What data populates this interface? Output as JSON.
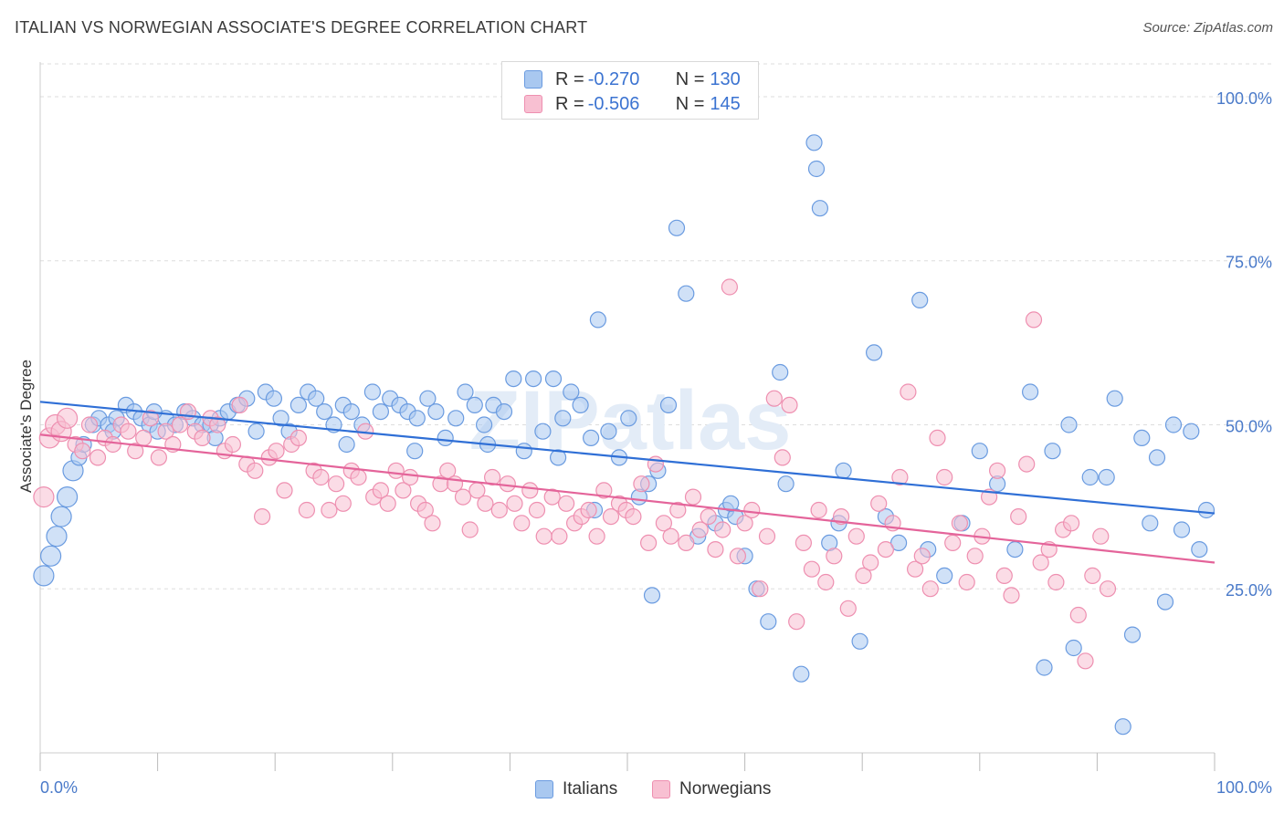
{
  "title": "ITALIAN VS NORWEGIAN ASSOCIATE'S DEGREE CORRELATION CHART",
  "source": "Source: ZipAtlas.com",
  "watermark": "ZIPatlas",
  "legend": {
    "rows": [
      {
        "r_label": "R =",
        "r_value": "-0.270",
        "n_label": "N =",
        "n_value": "130"
      },
      {
        "r_label": "R =",
        "r_value": "-0.506",
        "n_label": "N =",
        "n_value": "145"
      }
    ]
  },
  "bottom_legend": {
    "italians": "Italians",
    "norwegians": "Norwegians"
  },
  "colors": {
    "italians_fill": "#a9c8f0",
    "italians_stroke": "#6a9be0",
    "italians_line": "#2f6fd6",
    "norwegians_fill": "#f8c0d2",
    "norwegians_stroke": "#ee8fb0",
    "norwegians_line": "#e4649a",
    "axis_label": "#4a7ac9",
    "grid": "#dddddd"
  },
  "chart_data": {
    "type": "scatter",
    "title": "ITALIAN VS NORWEGIAN ASSOCIATE'S DEGREE CORRELATION CHART",
    "xlabel": "",
    "ylabel": "Associate's Degree",
    "xlim": [
      0,
      100
    ],
    "ylim": [
      0,
      105
    ],
    "x_tick_labels": [
      "0.0%",
      "100.0%"
    ],
    "y_ticks": [
      25,
      50,
      75,
      100
    ],
    "y_tick_labels": [
      "25.0%",
      "50.0%",
      "75.0%",
      "100.0%"
    ],
    "series": [
      {
        "name": "Italians",
        "r": -0.27,
        "n": 130,
        "trend": {
          "x0": 0,
          "y0": 53.5,
          "x1": 100,
          "y1": 36.5
        },
        "points": [
          [
            0.3,
            27
          ],
          [
            0.9,
            30
          ],
          [
            1.4,
            33
          ],
          [
            1.8,
            36
          ],
          [
            2.3,
            39
          ],
          [
            2.8,
            43
          ],
          [
            3.3,
            45
          ],
          [
            3.7,
            47
          ],
          [
            4.5,
            50
          ],
          [
            5,
            51
          ],
          [
            5.8,
            50
          ],
          [
            6.5,
            51
          ],
          [
            7.3,
            53
          ],
          [
            8,
            52
          ],
          [
            8.6,
            51
          ],
          [
            9.3,
            50
          ],
          [
            10,
            49
          ],
          [
            10.7,
            51
          ],
          [
            11.5,
            50
          ],
          [
            12.3,
            52
          ],
          [
            13,
            51
          ],
          [
            13.8,
            50
          ],
          [
            14.5,
            50
          ],
          [
            15.3,
            51
          ],
          [
            16,
            52
          ],
          [
            16.8,
            53
          ],
          [
            17.6,
            54
          ],
          [
            18.4,
            49
          ],
          [
            19.2,
            55
          ],
          [
            19.9,
            54
          ],
          [
            20.5,
            51
          ],
          [
            21.2,
            49
          ],
          [
            22,
            53
          ],
          [
            22.8,
            55
          ],
          [
            23.5,
            54
          ],
          [
            24.2,
            52
          ],
          [
            25,
            50
          ],
          [
            25.8,
            53
          ],
          [
            26.5,
            52
          ],
          [
            27.4,
            50
          ],
          [
            28.3,
            55
          ],
          [
            29,
            52
          ],
          [
            29.8,
            54
          ],
          [
            30.6,
            53
          ],
          [
            31.3,
            52
          ],
          [
            32.1,
            51
          ],
          [
            33,
            54
          ],
          [
            33.7,
            52
          ],
          [
            34.5,
            48
          ],
          [
            35.4,
            51
          ],
          [
            36.2,
            55
          ],
          [
            37,
            53
          ],
          [
            37.8,
            50
          ],
          [
            38.6,
            53
          ],
          [
            39.5,
            52
          ],
          [
            40.3,
            57
          ],
          [
            41.2,
            46
          ],
          [
            42,
            57
          ],
          [
            42.8,
            49
          ],
          [
            43.7,
            57
          ],
          [
            44.5,
            51
          ],
          [
            45.2,
            55
          ],
          [
            46,
            53
          ],
          [
            46.9,
            48
          ],
          [
            47.5,
            66
          ],
          [
            48.4,
            49
          ],
          [
            49.3,
            45
          ],
          [
            50.1,
            51
          ],
          [
            51,
            39
          ],
          [
            51.8,
            41
          ],
          [
            52.6,
            43
          ],
          [
            53.5,
            53
          ],
          [
            54.2,
            80
          ],
          [
            55,
            70
          ],
          [
            56,
            33
          ],
          [
            57.5,
            35
          ],
          [
            58.4,
            37
          ],
          [
            59.2,
            36
          ],
          [
            60,
            30
          ],
          [
            61,
            25
          ],
          [
            62,
            20
          ],
          [
            63,
            58
          ],
          [
            63.5,
            41
          ],
          [
            64.8,
            12
          ],
          [
            65.9,
            93
          ],
          [
            66.1,
            89
          ],
          [
            66.4,
            83
          ],
          [
            67.2,
            32
          ],
          [
            68,
            35
          ],
          [
            68.4,
            43
          ],
          [
            69.8,
            17
          ],
          [
            71,
            61
          ],
          [
            72,
            36
          ],
          [
            73.1,
            32
          ],
          [
            74.9,
            69
          ],
          [
            75.6,
            31
          ],
          [
            77,
            27
          ],
          [
            78.5,
            35
          ],
          [
            80,
            46
          ],
          [
            81.5,
            41
          ],
          [
            83,
            31
          ],
          [
            84.3,
            55
          ],
          [
            85.5,
            13
          ],
          [
            86.2,
            46
          ],
          [
            87.6,
            50
          ],
          [
            88,
            16
          ],
          [
            89.4,
            42
          ],
          [
            90.8,
            42
          ],
          [
            91.5,
            54
          ],
          [
            92.2,
            4
          ],
          [
            93,
            18
          ],
          [
            93.8,
            48
          ],
          [
            94.5,
            35
          ],
          [
            95.1,
            45
          ],
          [
            95.8,
            23
          ],
          [
            96.5,
            50
          ],
          [
            97.2,
            34
          ],
          [
            98,
            49
          ],
          [
            98.7,
            31
          ],
          [
            99.3,
            37
          ],
          [
            6.2,
            49
          ],
          [
            9.7,
            52
          ],
          [
            14.9,
            48
          ],
          [
            26.1,
            47
          ],
          [
            31.9,
            46
          ],
          [
            38.1,
            47
          ],
          [
            44.1,
            45
          ],
          [
            47.2,
            37
          ],
          [
            52.1,
            24
          ],
          [
            58.8,
            38
          ]
        ]
      },
      {
        "name": "Norwegians",
        "r": -0.506,
        "n": 145,
        "trend": {
          "x0": 0,
          "y0": 48.5,
          "x1": 100,
          "y1": 29.0
        },
        "points": [
          [
            0.3,
            39
          ],
          [
            0.8,
            48
          ],
          [
            1.3,
            50
          ],
          [
            1.8,
            49
          ],
          [
            2.3,
            51
          ],
          [
            3,
            47
          ],
          [
            3.6,
            46
          ],
          [
            4.2,
            50
          ],
          [
            4.9,
            45
          ],
          [
            5.5,
            48
          ],
          [
            6.2,
            47
          ],
          [
            6.9,
            50
          ],
          [
            7.5,
            49
          ],
          [
            8.1,
            46
          ],
          [
            8.8,
            48
          ],
          [
            9.4,
            51
          ],
          [
            10.1,
            45
          ],
          [
            10.7,
            49
          ],
          [
            11.3,
            47
          ],
          [
            11.9,
            50
          ],
          [
            12.6,
            52
          ],
          [
            13.2,
            49
          ],
          [
            13.8,
            48
          ],
          [
            14.5,
            51
          ],
          [
            15.1,
            50
          ],
          [
            15.7,
            46
          ],
          [
            16.4,
            47
          ],
          [
            17,
            53
          ],
          [
            17.6,
            44
          ],
          [
            18.3,
            43
          ],
          [
            18.9,
            36
          ],
          [
            19.5,
            45
          ],
          [
            20.1,
            46
          ],
          [
            20.8,
            40
          ],
          [
            21.4,
            47
          ],
          [
            22,
            48
          ],
          [
            22.7,
            37
          ],
          [
            23.3,
            43
          ],
          [
            23.9,
            42
          ],
          [
            24.6,
            37
          ],
          [
            25.2,
            41
          ],
          [
            25.8,
            38
          ],
          [
            26.5,
            43
          ],
          [
            27.1,
            42
          ],
          [
            27.7,
            49
          ],
          [
            28.4,
            39
          ],
          [
            29,
            40
          ],
          [
            29.6,
            38
          ],
          [
            30.3,
            43
          ],
          [
            30.9,
            40
          ],
          [
            31.5,
            42
          ],
          [
            32.2,
            38
          ],
          [
            32.8,
            37
          ],
          [
            33.4,
            35
          ],
          [
            34.1,
            41
          ],
          [
            34.7,
            43
          ],
          [
            35.3,
            41
          ],
          [
            36,
            39
          ],
          [
            36.6,
            34
          ],
          [
            37.2,
            40
          ],
          [
            37.9,
            38
          ],
          [
            38.5,
            42
          ],
          [
            39.1,
            37
          ],
          [
            39.8,
            41
          ],
          [
            40.4,
            38
          ],
          [
            41,
            35
          ],
          [
            41.7,
            40
          ],
          [
            42.3,
            37
          ],
          [
            42.9,
            33
          ],
          [
            43.6,
            39
          ],
          [
            44.2,
            33
          ],
          [
            44.8,
            38
          ],
          [
            45.5,
            35
          ],
          [
            46.1,
            36
          ],
          [
            46.7,
            37
          ],
          [
            47.4,
            33
          ],
          [
            48,
            40
          ],
          [
            48.6,
            36
          ],
          [
            49.3,
            38
          ],
          [
            49.9,
            37
          ],
          [
            50.5,
            36
          ],
          [
            51.2,
            41
          ],
          [
            51.8,
            32
          ],
          [
            52.4,
            44
          ],
          [
            53.1,
            35
          ],
          [
            53.7,
            33
          ],
          [
            54.3,
            37
          ],
          [
            55,
            32
          ],
          [
            55.6,
            39
          ],
          [
            56.2,
            34
          ],
          [
            56.9,
            36
          ],
          [
            57.5,
            31
          ],
          [
            58.1,
            34
          ],
          [
            58.7,
            71
          ],
          [
            59.4,
            30
          ],
          [
            60,
            35
          ],
          [
            60.6,
            37
          ],
          [
            61.3,
            25
          ],
          [
            61.9,
            33
          ],
          [
            62.5,
            54
          ],
          [
            63.2,
            45
          ],
          [
            63.8,
            53
          ],
          [
            64.4,
            20
          ],
          [
            65,
            32
          ],
          [
            65.7,
            28
          ],
          [
            66.3,
            37
          ],
          [
            66.9,
            26
          ],
          [
            67.6,
            30
          ],
          [
            68.2,
            36
          ],
          [
            68.8,
            22
          ],
          [
            69.5,
            33
          ],
          [
            70.1,
            27
          ],
          [
            70.7,
            29
          ],
          [
            71.4,
            38
          ],
          [
            72,
            31
          ],
          [
            72.6,
            35
          ],
          [
            73.2,
            42
          ],
          [
            73.9,
            55
          ],
          [
            74.5,
            28
          ],
          [
            75.1,
            30
          ],
          [
            75.8,
            25
          ],
          [
            76.4,
            48
          ],
          [
            77,
            42
          ],
          [
            77.7,
            32
          ],
          [
            78.3,
            35
          ],
          [
            78.9,
            26
          ],
          [
            79.6,
            30
          ],
          [
            80.2,
            33
          ],
          [
            80.8,
            39
          ],
          [
            81.5,
            43
          ],
          [
            82.1,
            27
          ],
          [
            82.7,
            24
          ],
          [
            83.3,
            36
          ],
          [
            84,
            44
          ],
          [
            84.6,
            66
          ],
          [
            85.2,
            29
          ],
          [
            85.9,
            31
          ],
          [
            86.5,
            26
          ],
          [
            87.1,
            34
          ],
          [
            87.8,
            35
          ],
          [
            88.4,
            21
          ],
          [
            89,
            14
          ],
          [
            89.6,
            27
          ],
          [
            90.3,
            33
          ],
          [
            90.9,
            25
          ]
        ]
      }
    ]
  }
}
